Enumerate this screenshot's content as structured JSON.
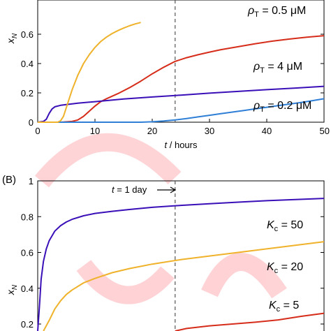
{
  "chart_data": [
    {
      "type": "line",
      "xlabel_var": "t",
      "xlabel_unit": " / hours",
      "ylabel_base": "x",
      "ylabel_sub": "N",
      "xlim": [
        0,
        50
      ],
      "ylim": [
        0,
        0.68
      ],
      "xticks": [
        "0",
        "10",
        "20",
        "30",
        "40",
        "50"
      ],
      "xtick_values": [
        0,
        10,
        20,
        30,
        40,
        50
      ],
      "yticks": [
        "0",
        "0.2",
        "0.4",
        "0.6"
      ],
      "ytick_values": [
        0,
        0.2,
        0.4,
        0.6
      ],
      "vline_x": 24,
      "series": [
        {
          "label": "ρT = 0.5 μM",
          "label_base": "ρ",
          "label_sub": "T",
          "label_rest": " = 0.5 μM",
          "color": "#d62c1a",
          "x": [
            0,
            4,
            6,
            7,
            8,
            9,
            10,
            11,
            12,
            14,
            16,
            18,
            20,
            22,
            24,
            26,
            28,
            30,
            32,
            35,
            38,
            41,
            44,
            47,
            50
          ],
          "y": [
            0,
            0,
            0.005,
            0.015,
            0.04,
            0.075,
            0.11,
            0.14,
            0.16,
            0.195,
            0.235,
            0.28,
            0.33,
            0.375,
            0.415,
            0.44,
            0.46,
            0.478,
            0.495,
            0.515,
            0.535,
            0.553,
            0.567,
            0.58,
            0.59
          ]
        },
        {
          "label": "ρT = 4 μM",
          "label_base": "ρ",
          "label_sub": "T",
          "label_rest": " = 4 μM",
          "color": "#3a0fb8",
          "x": [
            0,
            1,
            1.5,
            2,
            2.5,
            3,
            4,
            5,
            7,
            10,
            15,
            20,
            25,
            30,
            35,
            40,
            45,
            50
          ],
          "y": [
            0,
            0.005,
            0.02,
            0.06,
            0.09,
            0.105,
            0.115,
            0.12,
            0.13,
            0.14,
            0.158,
            0.172,
            0.185,
            0.198,
            0.21,
            0.222,
            0.233,
            0.245
          ]
        },
        {
          "label": "ρT = 0.2 μM",
          "label_base": "ρ",
          "label_sub": "T",
          "label_rest": " = 0.2 μM",
          "color": "#2f7fd6",
          "x": [
            0,
            18,
            20,
            22,
            24,
            26,
            28,
            30,
            32,
            34,
            36,
            38,
            40,
            42,
            44,
            46,
            48,
            50
          ],
          "y": [
            0,
            0,
            0.003,
            0.008,
            0.015,
            0.025,
            0.036,
            0.047,
            0.058,
            0.069,
            0.08,
            0.091,
            0.102,
            0.113,
            0.124,
            0.135,
            0.147,
            0.16
          ]
        },
        {
          "label": "",
          "color": "#efb22a",
          "x": [
            0,
            3.5,
            4,
            4.5,
            5,
            5.5,
            6,
            7,
            8,
            9,
            10,
            11,
            12,
            13,
            14,
            15,
            16,
            17,
            18
          ],
          "y": [
            0,
            0,
            0.01,
            0.04,
            0.1,
            0.16,
            0.22,
            0.32,
            0.4,
            0.46,
            0.51,
            0.55,
            0.58,
            0.605,
            0.625,
            0.642,
            0.657,
            0.67,
            0.68
          ]
        }
      ]
    },
    {
      "type": "line",
      "panel_label": "(B)",
      "ylabel_base": "x",
      "ylabel_sub": "N",
      "ylim": [
        0.15,
        1
      ],
      "xlim": [
        0,
        50
      ],
      "yticks": [
        "0.2",
        "0.4",
        "0.6",
        "0.8",
        "1"
      ],
      "ytick_values": [
        0.2,
        0.4,
        0.6,
        0.8,
        1
      ],
      "vline_x": 24,
      "vline_label": "t = 1 day",
      "vline_label_var": "t",
      "vline_label_rest": " = 1 day",
      "series": [
        {
          "label": "Kc = 50",
          "label_base": "K",
          "label_sub": "c",
          "label_rest": " = 50",
          "color": "#3a0fb8",
          "x": [
            0,
            0.3,
            0.6,
            1,
            1.5,
            2,
            3,
            4,
            5,
            6,
            8,
            10,
            13,
            16,
            20,
            25,
            30,
            35,
            40,
            45,
            50
          ],
          "y": [
            0.15,
            0.3,
            0.45,
            0.55,
            0.62,
            0.665,
            0.72,
            0.75,
            0.77,
            0.785,
            0.805,
            0.818,
            0.83,
            0.84,
            0.852,
            0.863,
            0.872,
            0.881,
            0.889,
            0.896,
            0.902
          ]
        },
        {
          "label": "Kc = 20",
          "label_base": "K",
          "label_sub": "c",
          "label_rest": " = 20",
          "color": "#efb22a",
          "x": [
            1,
            2,
            3,
            4,
            5,
            6,
            8,
            10,
            13,
            16,
            20,
            25,
            30,
            35,
            40,
            45,
            50
          ],
          "y": [
            0.15,
            0.22,
            0.285,
            0.33,
            0.365,
            0.39,
            0.43,
            0.455,
            0.487,
            0.51,
            0.535,
            0.56,
            0.58,
            0.6,
            0.62,
            0.64,
            0.66
          ]
        },
        {
          "label": "Kc = 5",
          "label_base": "K",
          "label_sub": "c",
          "label_rest": " = 5",
          "color": "#d62c1a",
          "x": [
            24,
            26,
            30,
            34,
            38,
            42,
            46,
            50
          ],
          "y": [
            0.15,
            0.175,
            0.19,
            0.2,
            0.21,
            0.223,
            0.243,
            0.26
          ]
        }
      ]
    }
  ]
}
